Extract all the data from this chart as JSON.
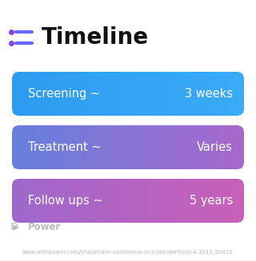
{
  "title": "Timeline",
  "title_fontsize": 20,
  "title_color": "#111111",
  "background_color": "#ffffff",
  "icon_color_dot": "#8844ee",
  "icon_color_line": "#6666ff",
  "rows": [
    {
      "label": "Screening ~",
      "value": "3 weeks",
      "grad_left": "#2d9cf0",
      "grad_right": "#3aabf8"
    },
    {
      "label": "Treatment ~",
      "value": "Varies",
      "grad_left": "#6680dd",
      "grad_right": "#a868cc"
    },
    {
      "label": "Follow ups ~",
      "value": "5 years",
      "grad_left": "#9f68cc",
      "grad_right": "#c860b8"
    }
  ],
  "text_color": "#ffffff",
  "label_fontsize": 10.5,
  "value_fontsize": 10.5,
  "watermark_text": "Power",
  "watermark_color": "#bbbbbb",
  "url_text": "www.withpower.com/trial/phase-carcinoma-mucoepidermold-6-2011-5bd10",
  "url_color": "#bbbbbb",
  "url_fontsize": 5.0
}
